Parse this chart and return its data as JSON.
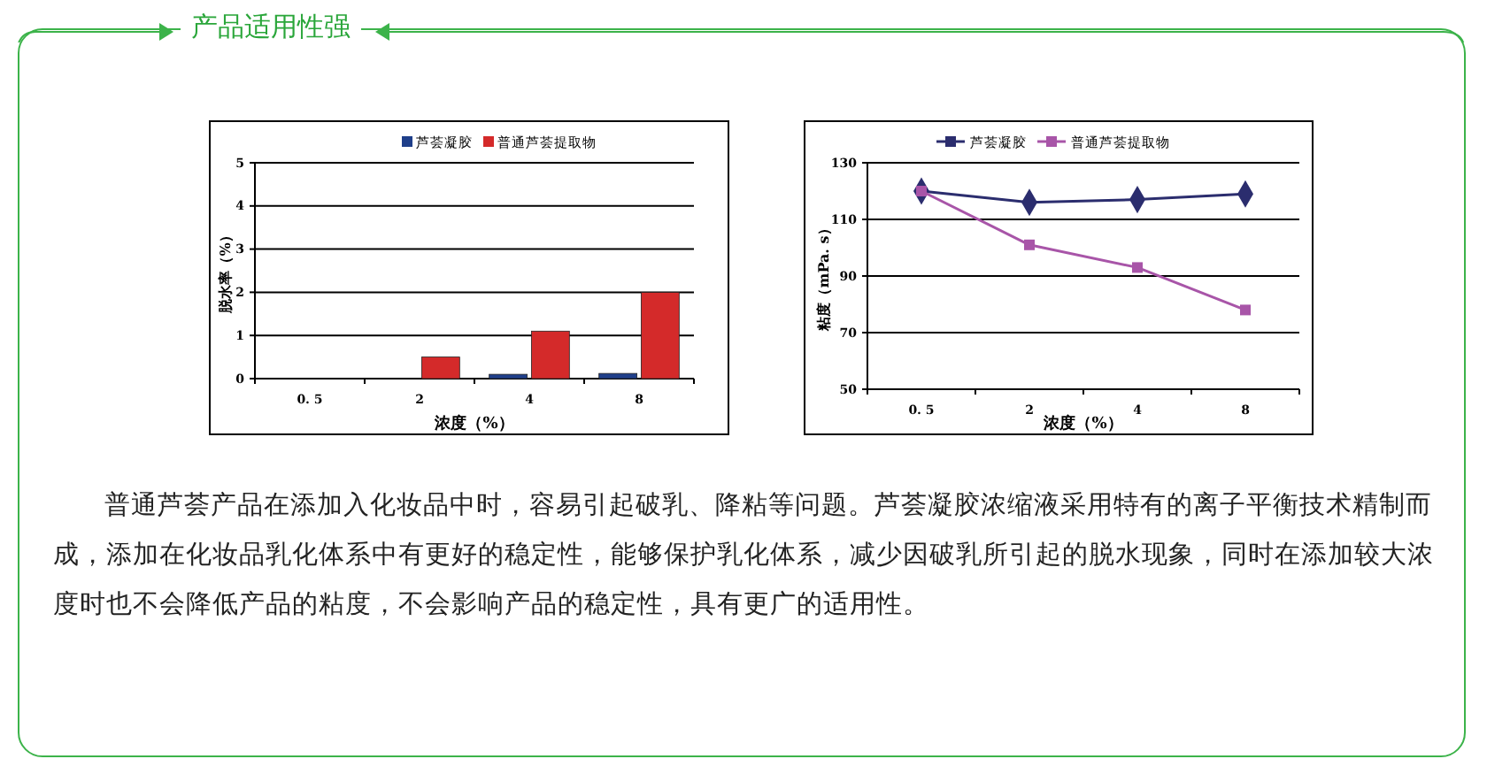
{
  "chart_data": [
    {
      "type": "other",
      "title": "产品适用性强",
      "annotations": [
        "普通芦荟产品在添加入化妆品中时，容易引起破乳、降粘等问题。芦荟凝胶浓缩液采用特有的离子平衡技术精制而成，添加在化妆品乳化体系中有更好的稳定性，能够保护乳化体系，减少因破乳所引起的脱水现象，同时在添加较大浓度时也不会降低产品的粘度，不会影响产品的稳定性，具有更广的适用性。"
      ]
    },
    {
      "type": "bar",
      "categories": [
        "0. 5",
        "2",
        "4",
        "8"
      ],
      "xlabel": "浓度（%）",
      "ylabel": "脱水率（%）",
      "ylim": [
        0,
        5
      ],
      "yticks": [
        0,
        1,
        2,
        3,
        4,
        5
      ],
      "grid": "y",
      "legend": "top",
      "series": [
        {
          "name": "芦荟凝胶",
          "color": "#1f3f8a",
          "values": [
            0,
            0,
            0.1,
            0.12
          ]
        },
        {
          "name": "普通芦荟提取物",
          "color": "#d42a2a",
          "values": [
            0,
            0.5,
            1.1,
            2.0
          ]
        }
      ]
    },
    {
      "type": "line",
      "categories": [
        "0. 5",
        "2",
        "4",
        "8"
      ],
      "xlabel": "浓度（%）",
      "ylabel": "粘度（mPa. s）",
      "ylim": [
        50,
        130
      ],
      "yticks": [
        50,
        70,
        90,
        110,
        130
      ],
      "grid": "y",
      "legend": "top",
      "series": [
        {
          "name": "芦荟凝胶",
          "color": "#2b2d6e",
          "marker": "diamond",
          "values": [
            120,
            116,
            117,
            119
          ]
        },
        {
          "name": "普通芦荟提取物",
          "color": "#a855a8",
          "marker": "square",
          "values": [
            120,
            101,
            93,
            78
          ]
        }
      ]
    }
  ]
}
